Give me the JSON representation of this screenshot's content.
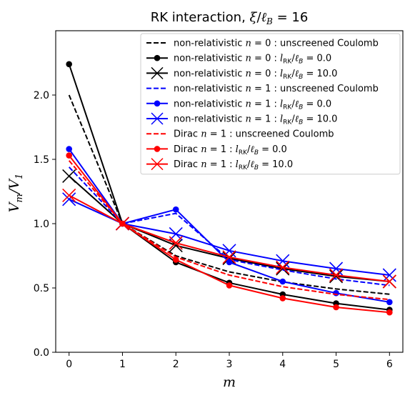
{
  "chart_data": {
    "type": "line",
    "title": "RK interaction, ξ/ℓ_B = 16",
    "xlabel": "m",
    "ylabel": "V_m/V_1",
    "xlim": [
      -0.25,
      6.25
    ],
    "ylim": [
      0.0,
      2.5
    ],
    "xticks": [
      0,
      1,
      2,
      3,
      4,
      5,
      6
    ],
    "yticks": [
      0.0,
      0.5,
      1.0,
      1.5,
      2.0
    ],
    "ytick_labels": [
      "0.0",
      "0.5",
      "1.0",
      "1.5",
      "2.0"
    ],
    "legend_position": "upper right",
    "x": [
      0,
      1,
      2,
      3,
      4,
      5,
      6
    ],
    "series": [
      {
        "name": "non-relativistic n = 0 : unscreened Coulomb",
        "color": "#000000",
        "style": "dashed",
        "marker": "none",
        "values": [
          2.0,
          1.0,
          0.75,
          0.625,
          0.547,
          0.492,
          0.451
        ]
      },
      {
        "name": "non-relativistic n = 0 : l_RK/ℓ_B = 0.0",
        "color": "#000000",
        "style": "solid",
        "marker": "circle",
        "values": [
          2.24,
          1.0,
          0.7,
          0.54,
          0.45,
          0.38,
          0.33
        ]
      },
      {
        "name": "non-relativistic n = 0 : l_RK/ℓ_B = 10.0",
        "color": "#000000",
        "style": "solid",
        "marker": "x",
        "values": [
          1.37,
          1.0,
          0.83,
          0.73,
          0.65,
          0.59,
          0.55
        ]
      },
      {
        "name": "non-relativistic n = 1 : unscreened Coulomb",
        "color": "#0000ff",
        "style": "dashed",
        "marker": "none",
        "values": [
          1.44,
          1.0,
          1.08,
          0.72,
          0.64,
          0.57,
          0.52
        ]
      },
      {
        "name": "non-relativistic n = 1 : l_RK/ℓ_B = 0.0",
        "color": "#0000ff",
        "style": "solid",
        "marker": "circle",
        "values": [
          1.58,
          1.0,
          1.11,
          0.7,
          0.55,
          0.46,
          0.39
        ]
      },
      {
        "name": "non-relativistic n = 1 : l_RK/ℓ_B = 10.0",
        "color": "#0000ff",
        "style": "solid",
        "marker": "x",
        "values": [
          1.19,
          1.0,
          0.92,
          0.79,
          0.71,
          0.65,
          0.6
        ]
      },
      {
        "name": "Dirac n = 1 : unscreened Coulomb",
        "color": "#ff0000",
        "style": "dashed",
        "marker": "none",
        "values": [
          1.49,
          1.0,
          0.74,
          0.6,
          0.51,
          0.45,
          0.41
        ]
      },
      {
        "name": "Dirac n = 1 : l_RK/ℓ_B = 0.0",
        "color": "#ff0000",
        "style": "solid",
        "marker": "circle",
        "values": [
          1.53,
          1.0,
          0.72,
          0.52,
          0.42,
          0.35,
          0.31
        ]
      },
      {
        "name": "Dirac n = 1 : l_RK/ℓ_B = 10.0",
        "color": "#ff0000",
        "style": "solid",
        "marker": "x",
        "values": [
          1.22,
          1.0,
          0.85,
          0.74,
          0.66,
          0.6,
          0.55
        ]
      }
    ]
  }
}
